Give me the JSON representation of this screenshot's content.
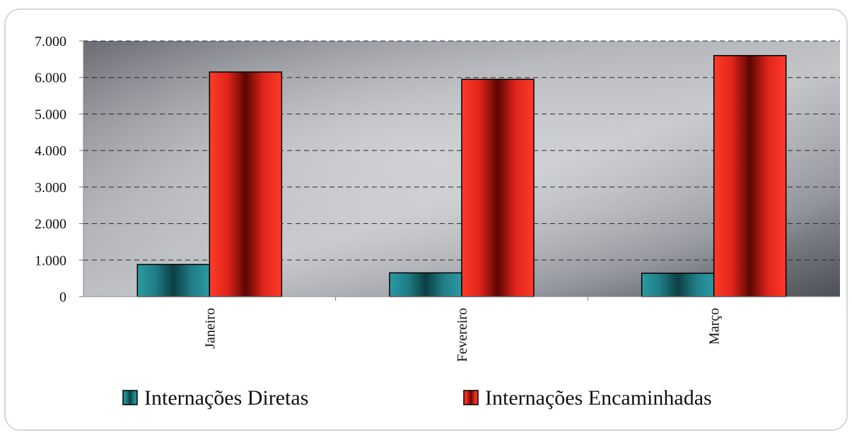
{
  "chart_data": {
    "type": "bar",
    "categories": [
      "Janeiro",
      "Fevereiro",
      "Março"
    ],
    "series": [
      {
        "name": "Internações Diretas",
        "values": [
          880,
          650,
          640
        ],
        "color": "#1f7d86"
      },
      {
        "name": "Internações Encaminhadas",
        "values": [
          6150,
          5950,
          6600
        ],
        "color": "#e0251a"
      }
    ],
    "ylim": [
      0,
      7000
    ],
    "yticks": [
      0,
      1000,
      2000,
      3000,
      4000,
      5000,
      6000,
      7000
    ],
    "ytick_labels": [
      "0",
      "1.000",
      "2.000",
      "3.000",
      "4.000",
      "5.000",
      "6.000",
      "7.000"
    ],
    "grid": true,
    "legend_position": "bottom",
    "title": "",
    "xlabel": "",
    "ylabel": ""
  }
}
